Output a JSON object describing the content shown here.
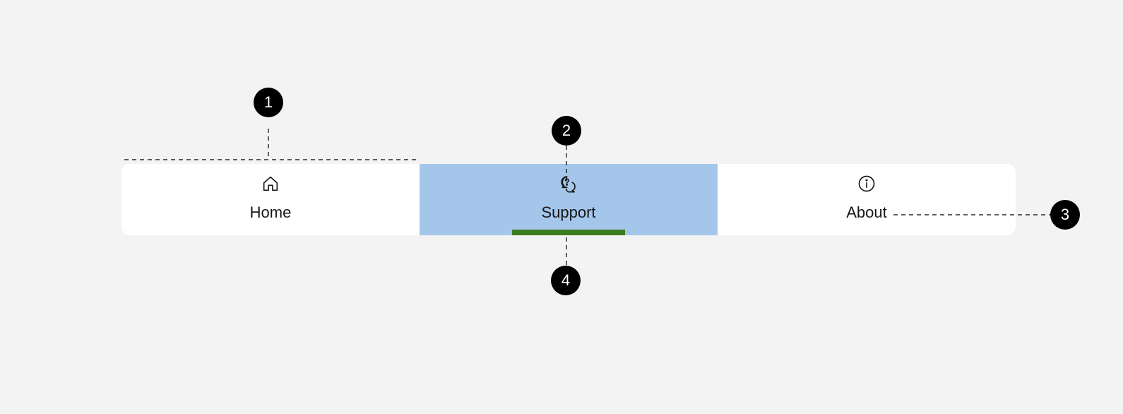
{
  "tabs": [
    {
      "label": "Home",
      "icon": "home-icon",
      "selected": false
    },
    {
      "label": "Support",
      "icon": "support-chat-icon",
      "selected": true
    },
    {
      "label": "About",
      "icon": "info-icon",
      "selected": false
    }
  ],
  "callouts": [
    "1",
    "2",
    "3",
    "4"
  ],
  "colors": {
    "background": "#f3f3f3",
    "bar": "#ffffff",
    "selected_tab": "#a4c6ea",
    "selected_indicator": "#3a7d1f",
    "marker": "#000000",
    "text": "#161616"
  }
}
